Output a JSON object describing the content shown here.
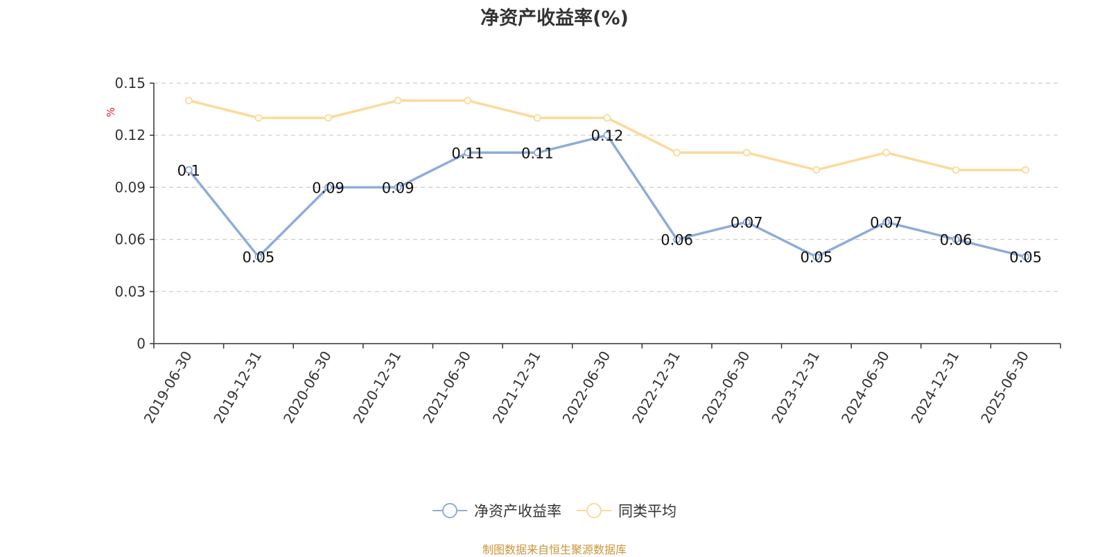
{
  "chart_data": {
    "type": "line",
    "title": "净资产收益率(%)",
    "ylabel": "%",
    "ylim": [
      0,
      0.15
    ],
    "yticks": [
      "0",
      "0.03",
      "0.06",
      "0.09",
      "0.12",
      "0.15"
    ],
    "grid": true,
    "legend_position": "bottom",
    "categories": [
      "2019-06-30",
      "2019-12-31",
      "2020-06-30",
      "2020-12-31",
      "2021-06-30",
      "2021-12-31",
      "2022-06-30",
      "2022-12-31",
      "2023-06-30",
      "2023-12-31",
      "2024-06-30",
      "2024-12-31",
      "2025-06-30"
    ],
    "series": [
      {
        "name": "净资产收益率",
        "color": "#8eacd9",
        "values": [
          0.1,
          0.05,
          0.09,
          0.09,
          0.11,
          0.11,
          0.12,
          0.06,
          0.07,
          0.05,
          0.07,
          0.06,
          0.05
        ],
        "labels": [
          "0.1",
          "0.05",
          "0.09",
          "0.09",
          "0.11",
          "0.11",
          "0.12",
          "0.06",
          "0.07",
          "0.05",
          "0.07",
          "0.06",
          "0.05"
        ]
      },
      {
        "name": "同类平均",
        "color": "#fdd99a",
        "values": [
          0.14,
          0.13,
          0.13,
          0.14,
          0.14,
          0.13,
          0.13,
          0.11,
          0.11,
          0.1,
          0.11,
          0.1,
          0.1
        ]
      }
    ]
  },
  "footer": {
    "source_note": "制图数据来自恒生聚源数据库"
  }
}
